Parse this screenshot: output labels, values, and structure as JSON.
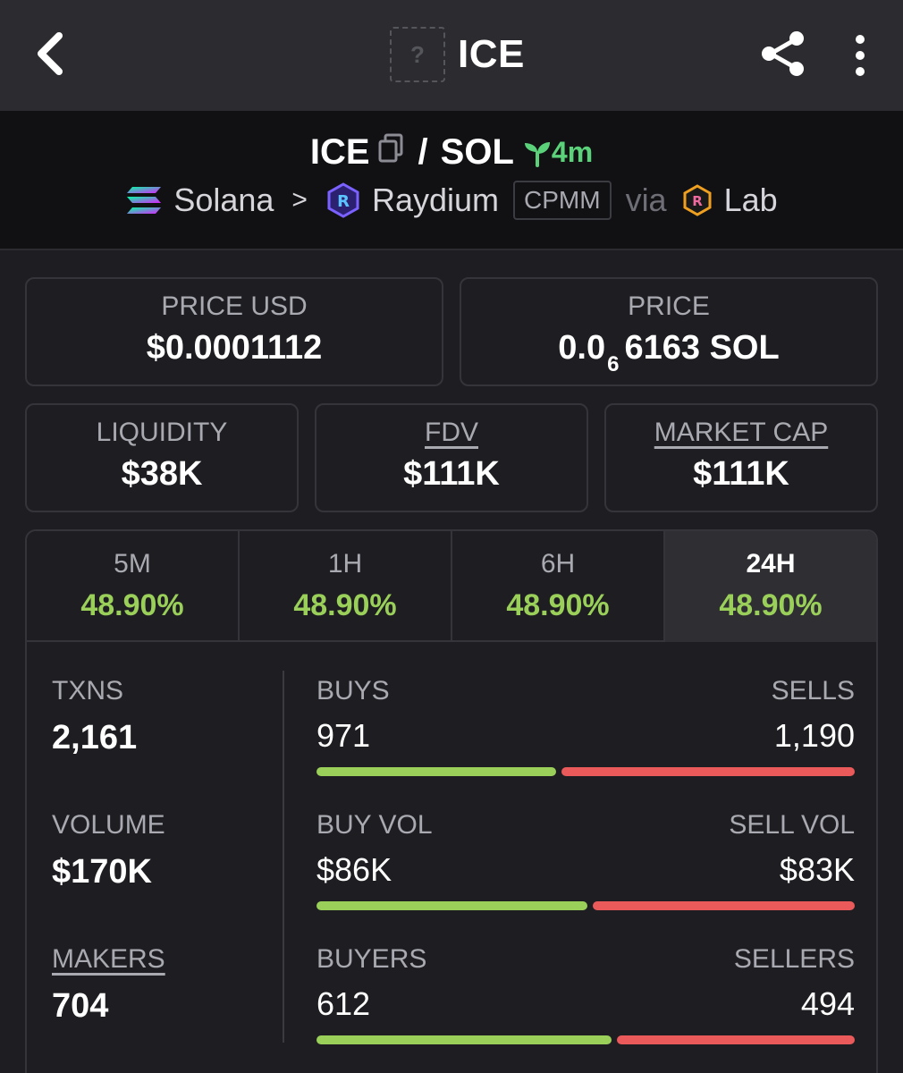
{
  "header": {
    "title": "ICE",
    "token_logo_placeholder": "?"
  },
  "pair": {
    "base": "ICE",
    "separator": "/",
    "quote": "SOL",
    "age": "4m",
    "chain": "Solana",
    "dex": "Raydium",
    "pool_type": "CPMM",
    "via": "via",
    "launchpad": "Lab"
  },
  "prices": {
    "price_usd_label": "PRICE USD",
    "price_usd": "$0.0001112",
    "price_label": "PRICE",
    "price_prefix": "0.0",
    "price_zero_count": "6",
    "price_suffix": "6163 SOL"
  },
  "metrics": [
    {
      "label": "LIQUIDITY",
      "value": "$38K",
      "underlined": false
    },
    {
      "label": "FDV",
      "value": "$111K",
      "underlined": true
    },
    {
      "label": "MARKET CAP",
      "value": "$111K",
      "underlined": true
    }
  ],
  "timeframes": [
    {
      "label": "5M",
      "change": "48.90%"
    },
    {
      "label": "1H",
      "change": "48.90%"
    },
    {
      "label": "6H",
      "change": "48.90%"
    },
    {
      "label": "24H",
      "change": "48.90%",
      "active": true
    }
  ],
  "stats": {
    "txns_label": "TXNS",
    "txns": "2,161",
    "volume_label": "VOLUME",
    "volume": "$170K",
    "makers_label": "MAKERS",
    "makers": "704",
    "buys_label": "BUYS",
    "buys": "971",
    "sells_label": "SELLS",
    "sells": "1,190",
    "buy_vol_label": "BUY VOL",
    "buy_vol": "$86K",
    "sell_vol_label": "SELL VOL",
    "sell_vol": "$83K",
    "buyers_label": "BUYERS",
    "buyers": "612",
    "sellers_label": "SELLERS",
    "sellers": "494",
    "buy_ratio_txns": 0.449,
    "buy_ratio_volume": 0.509,
    "buy_ratio_makers": 0.553
  },
  "colors": {
    "positive": "#9ad05a",
    "negative": "#ea5a5a",
    "age_green": "#5bd17a"
  }
}
